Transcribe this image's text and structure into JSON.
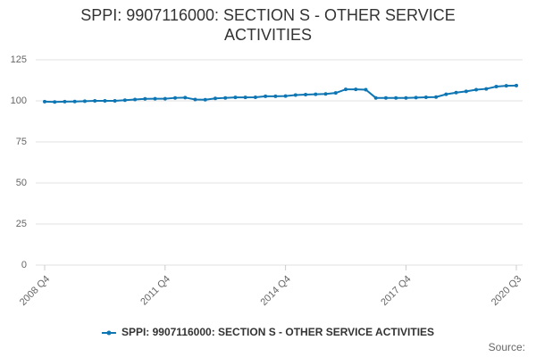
{
  "chart_data": {
    "type": "line",
    "title": "SPPI: 9907116000: SECTION S - OTHER SERVICE ACTIVITIES",
    "categories": [
      "2008 Q4",
      null,
      null,
      null,
      null,
      null,
      null,
      null,
      null,
      null,
      null,
      null,
      "2011 Q4",
      null,
      null,
      null,
      null,
      null,
      null,
      null,
      null,
      null,
      null,
      null,
      "2014 Q4",
      null,
      null,
      null,
      null,
      null,
      null,
      null,
      null,
      null,
      null,
      null,
      "2017 Q4",
      null,
      null,
      null,
      null,
      null,
      null,
      null,
      null,
      null,
      null,
      "2020 Q3"
    ],
    "series": [
      {
        "name": "SPPI: 9907116000: SECTION S - OTHER SERVICE ACTIVITIES",
        "color": "#0e76b3",
        "values": [
          99.5,
          99.3,
          99.5,
          99.6,
          99.8,
          100,
          100,
          100,
          100.4,
          100.8,
          101.2,
          101.3,
          101.3,
          101.8,
          102,
          100.8,
          100.7,
          101.5,
          101.8,
          102.1,
          102.1,
          102.2,
          102.8,
          102.8,
          102.9,
          103.5,
          103.8,
          104,
          104.2,
          104.8,
          107,
          107,
          106.8,
          101.8,
          101.8,
          101.8,
          101.8,
          102,
          102.2,
          102.3,
          104,
          105,
          105.8,
          106.8,
          107.3,
          108.7,
          109.2,
          109.3
        ]
      }
    ],
    "ylim": [
      0,
      125
    ],
    "yticks": [
      0,
      25,
      50,
      75,
      100,
      125
    ],
    "grid": true,
    "legend": "bottom",
    "source": "Source:"
  }
}
